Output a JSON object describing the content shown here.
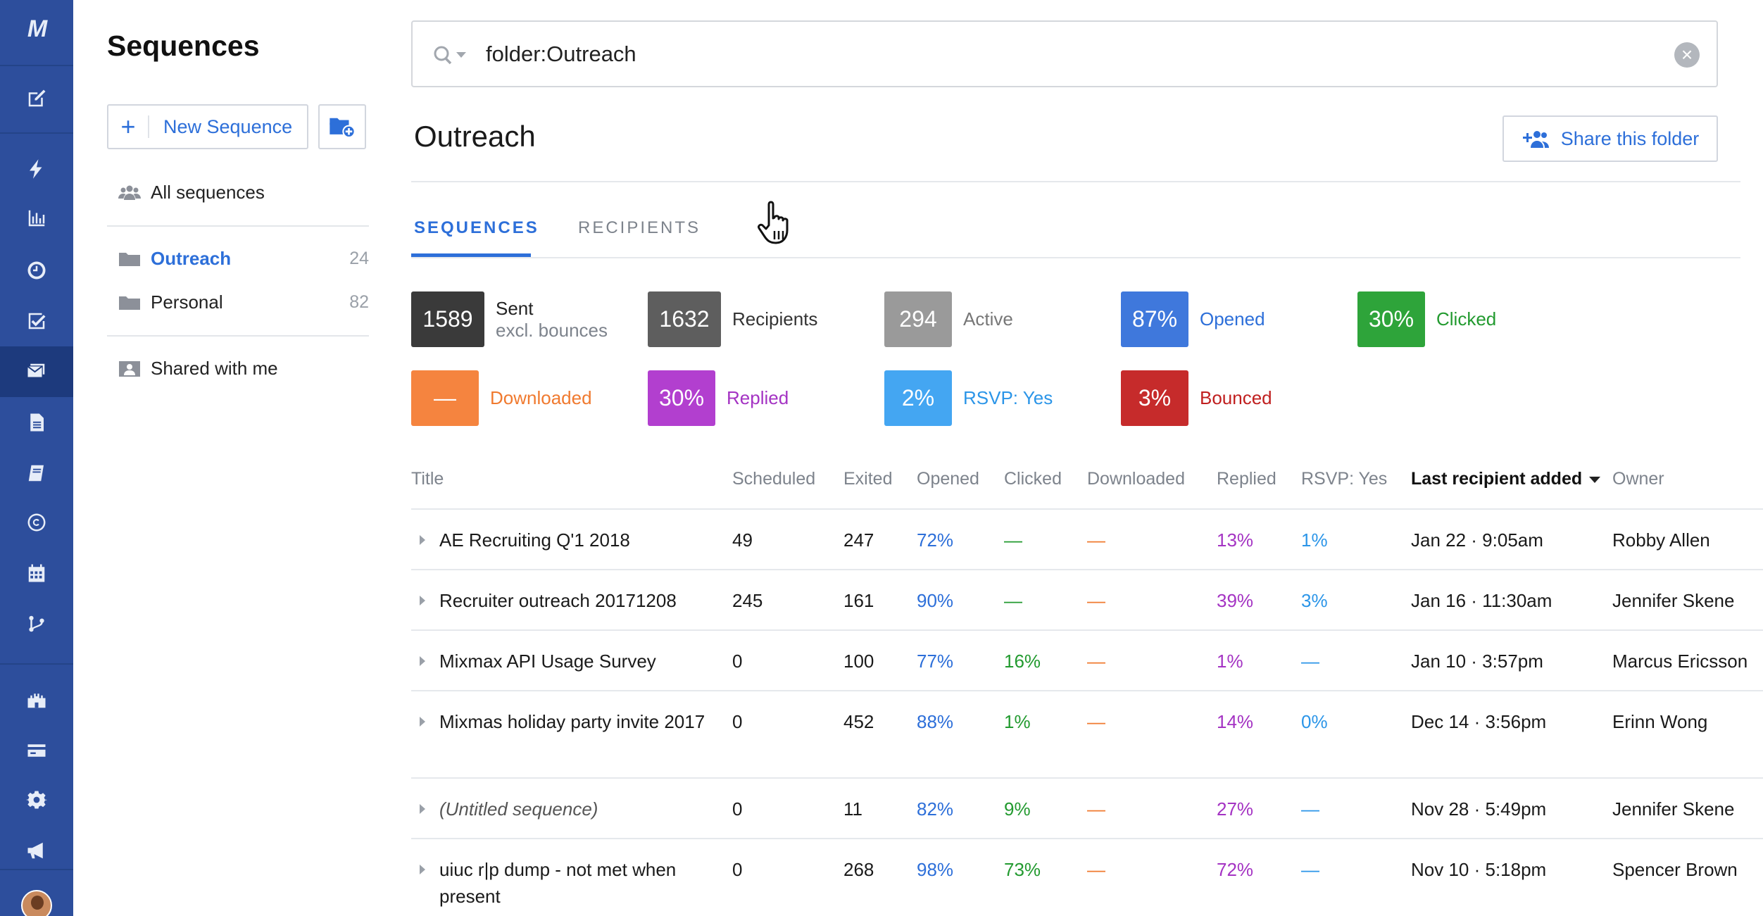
{
  "app": {
    "logo": "M",
    "colors": {
      "rail": "#2d4e9c",
      "accent": "#2d6fd9"
    }
  },
  "rail_icons": [
    "compose-icon",
    "lightning-icon",
    "chart-icon",
    "clock-icon",
    "checkbox-icon",
    "sequences-icon",
    "document-icon",
    "book-icon",
    "copyright-icon",
    "calendar-icon",
    "branch-icon",
    "castle-icon",
    "card-icon",
    "gear-icon",
    "megaphone-icon"
  ],
  "sidebar": {
    "title": "Sequences",
    "new_label": "New Sequence",
    "all_label": "All sequences",
    "folders": [
      {
        "label": "Outreach",
        "count": "24"
      },
      {
        "label": "Personal",
        "count": "82"
      }
    ],
    "shared_label": "Shared with me"
  },
  "search": {
    "query": "folder:Outreach"
  },
  "folder": {
    "title": "Outreach",
    "share_label": "Share this folder"
  },
  "tabs": [
    {
      "label": "SEQUENCES"
    },
    {
      "label": "RECIPIENTS"
    }
  ],
  "stats": [
    {
      "value": "1589",
      "label": "Sent",
      "sublabel": "excl. bounces",
      "color": "#3a3a3a",
      "text_color": "#222"
    },
    {
      "value": "1632",
      "label": "Recipients",
      "color": "#5e5e5e",
      "text_color": "#333"
    },
    {
      "value": "294",
      "label": "Active",
      "color": "#9a9a9a",
      "text_color": "#777"
    },
    {
      "value": "87%",
      "label": "Opened",
      "color": "#3f78dc",
      "text_color": "#2d6fd9"
    },
    {
      "value": "30%",
      "label": "Clicked",
      "color": "#2ea43a",
      "text_color": "#229a2f"
    },
    {
      "value": "—",
      "label": "Downloaded",
      "color": "#f5843f",
      "text_color": "#f07a2f"
    },
    {
      "value": "30%",
      "label": "Replied",
      "color": "#b23fcf",
      "text_color": "#a433c3"
    },
    {
      "value": "2%",
      "label": "RSVP: Yes",
      "color": "#44a6f2",
      "text_color": "#2b95e8"
    },
    {
      "value": "3%",
      "label": "Bounced",
      "color": "#c62b2b",
      "text_color": "#c01f1f"
    }
  ],
  "table": {
    "columns": [
      "Title",
      "Scheduled",
      "Exited",
      "Opened",
      "Clicked",
      "Downloaded",
      "Replied",
      "RSVP: Yes",
      "Last recipient added",
      "Owner"
    ],
    "rows": [
      {
        "title": "AE Recruiting Q'1 2018",
        "scheduled": "49",
        "exited": "247",
        "opened": "72%",
        "clicked": "—",
        "downloaded": "—",
        "replied": "13%",
        "rsvp": "1%",
        "last": "Jan 22 · 9:05am",
        "owner": "Robby Allen"
      },
      {
        "title": "Recruiter outreach 20171208",
        "scheduled": "245",
        "exited": "161",
        "opened": "90%",
        "clicked": "—",
        "downloaded": "—",
        "replied": "39%",
        "rsvp": "3%",
        "last": "Jan 16 · 11:30am",
        "owner": "Jennifer Skene"
      },
      {
        "title": "Mixmax API Usage Survey",
        "scheduled": "0",
        "exited": "100",
        "opened": "77%",
        "clicked": "16%",
        "downloaded": "—",
        "replied": "1%",
        "rsvp": "—",
        "last": "Jan 10 · 3:57pm",
        "owner": "Marcus Ericsson"
      },
      {
        "title": "Mixmas holiday party invite 2017",
        "scheduled": "0",
        "exited": "452",
        "opened": "88%",
        "clicked": "1%",
        "downloaded": "—",
        "replied": "14%",
        "rsvp": "0%",
        "last": "Dec 14 · 3:56pm",
        "owner": "Erinn Wong"
      },
      {
        "title": "(Untitled sequence)",
        "scheduled": "0",
        "exited": "11",
        "opened": "82%",
        "clicked": "9%",
        "downloaded": "—",
        "replied": "27%",
        "rsvp": "—",
        "last": "Nov 28 · 5:49pm",
        "owner": "Jennifer Skene"
      },
      {
        "title": "uiuc r|p dump - not met when present",
        "scheduled": "0",
        "exited": "268",
        "opened": "98%",
        "clicked": "73%",
        "downloaded": "—",
        "replied": "72%",
        "rsvp": "—",
        "last": "Nov 10 · 5:18pm",
        "owner": "Spencer Brown"
      }
    ]
  }
}
